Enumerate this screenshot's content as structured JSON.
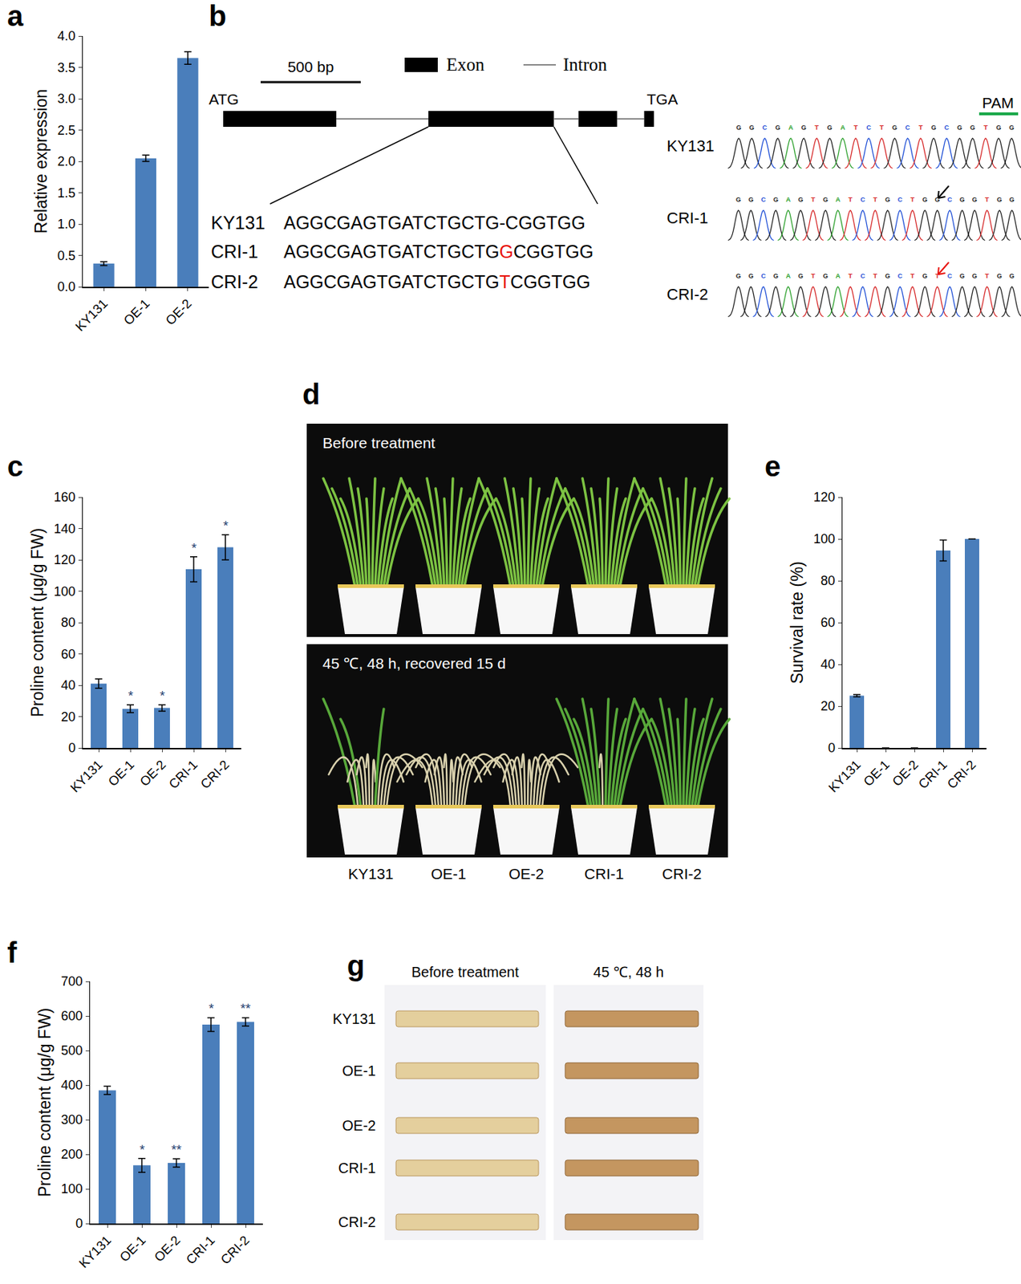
{
  "chart_data": [
    {
      "panel": "a",
      "type": "bar",
      "categories": [
        "KY131",
        "OE-1",
        "OE-2"
      ],
      "values": [
        0.37,
        2.05,
        3.65
      ],
      "errors": [
        0.03,
        0.05,
        0.1
      ],
      "y_label": "Relative expression",
      "ylim": [
        0,
        4
      ],
      "yticks": [
        {
          "value": 0,
          "label": "0.0"
        },
        0.5,
        {
          "value": 1,
          "label": "1.0"
        },
        1.5,
        {
          "value": 2,
          "label": "2.0"
        },
        2.5,
        {
          "value": 3,
          "label": "3.0"
        },
        3.5,
        {
          "value": 4,
          "label": "4.0"
        }
      ],
      "color": "#4a7ebb",
      "grid": false
    },
    {
      "panel": "c",
      "type": "bar",
      "categories": [
        "KY131",
        "OE-1",
        "OE-2",
        "CRI-1",
        "CRI-2"
      ],
      "values": [
        41,
        25,
        25.5,
        114,
        128
      ],
      "errors": [
        3,
        2.5,
        2,
        8,
        8
      ],
      "annotations": [
        null,
        "*",
        "*",
        "*",
        "*"
      ],
      "y_label": "Proline content (μg/g FW)",
      "ylim": [
        0,
        160
      ],
      "yticks": [
        0,
        20,
        40,
        60,
        80,
        100,
        120,
        140,
        160
      ],
      "color": "#4a7ebb",
      "grid": false
    },
    {
      "panel": "e",
      "type": "bar",
      "categories": [
        "KY131",
        "OE-1",
        "OE-2",
        "CRI-1",
        "CRI-2"
      ],
      "values": [
        25,
        0,
        0,
        94.5,
        100
      ],
      "errors": [
        0.5,
        0,
        0,
        5,
        0
      ],
      "y_label": "Survival rate (%)",
      "ylim": [
        0,
        120
      ],
      "yticks": [
        0,
        20,
        40,
        60,
        80,
        100,
        120
      ],
      "color": "#4a7ebb",
      "grid": false
    },
    {
      "panel": "f",
      "type": "bar",
      "categories": [
        "KY131",
        "OE-1",
        "OE-2",
        "CRI-1",
        "CRI-2"
      ],
      "values": [
        385,
        168,
        175,
        575,
        583
      ],
      "errors": [
        12,
        20,
        12,
        20,
        12
      ],
      "annotations": [
        null,
        "*",
        "**",
        "*",
        "**"
      ],
      "y_label": "Proline content (μg/g FW)",
      "ylim": [
        0,
        700
      ],
      "yticks": [
        0,
        100,
        200,
        300,
        400,
        500,
        600,
        700
      ],
      "color": "#4a7ebb",
      "grid": false
    }
  ],
  "gene_structure": {
    "panel": "b",
    "scale_bar_label": "500 bp",
    "scale_bar_bp": 500,
    "exon_label": "Exon",
    "intron_label": "Intron",
    "start_codon": "ATG",
    "stop_codon": "TGA",
    "exons": [
      [
        0,
        565
      ],
      [
        1025,
        1652
      ],
      [
        1775,
        1968
      ],
      [
        2103,
        2152
      ]
    ],
    "target_exon": 1,
    "alignment": [
      {
        "name": "KY131",
        "sequence": "AGGCGAGTGATCTGCTG-CGGTGG",
        "edit_index": null
      },
      {
        "name": "CRI-1",
        "sequence": "AGGCGAGTGATCTGCTGGCGGTGG",
        "edit_index": 17
      },
      {
        "name": "CRI-2",
        "sequence": "AGGCGAGTGATCTGCTGTCGGTGG",
        "edit_index": 17
      }
    ],
    "edit_color": "#e8120c",
    "pam_label": "PAM",
    "pam_color": "#1aa84a",
    "pam_length": 3,
    "base_colors": {
      "A": "#2ca02c",
      "C": "#1f4fd6",
      "G": "#222222",
      "T": "#d62728"
    },
    "chromatograms": [
      {
        "name": "KY131",
        "bases": "GGCGAGTGATCTGCTGCGGTGG",
        "arrow_index": null,
        "arrow_color": null
      },
      {
        "name": "CRI-1",
        "bases": "GGCGAGTGATCTGCTGGCGGTGG",
        "arrow_index": 16,
        "arrow_color": "#000000"
      },
      {
        "name": "CRI-2",
        "bases": "GGCGAGTGATCTGCTGTCGGTGG",
        "arrow_index": 16,
        "arrow_color": "#e8120c"
      }
    ]
  },
  "plant_photos": {
    "panel": "d",
    "before_label": "Before treatment",
    "after_label": "45 ℃, 48 h, recovered 15 d",
    "lines": [
      "KY131",
      "OE-1",
      "OE-2",
      "CRI-1",
      "CRI-2"
    ]
  },
  "leaf_staining": {
    "panel": "g",
    "before_label": "Before treatment",
    "after_label": "45 ℃, 48 h",
    "lines": [
      "KY131",
      "OE-1",
      "OE-2",
      "CRI-1",
      "CRI-2"
    ]
  }
}
